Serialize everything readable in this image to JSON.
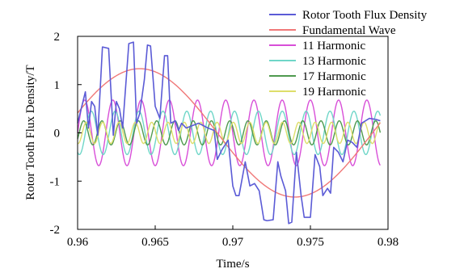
{
  "chart_data": {
    "type": "line",
    "xlabel": "Time/s",
    "ylabel": "Rotor Tooth Flux Density/T",
    "xlim": [
      0.96,
      0.98
    ],
    "ylim": [
      -2,
      2
    ],
    "xticks": [
      "0.96",
      "0.965",
      "0.97",
      "0.975",
      "0.98"
    ],
    "yticks": [
      "2",
      "1",
      "0",
      "-1",
      "-2"
    ],
    "legend_position": "top-right",
    "grid": false,
    "series": [
      {
        "name": "Rotor Tooth Flux Density",
        "color": "#5b5bd6",
        "x": [
          0.96,
          0.9605,
          0.9607,
          0.9609,
          0.9611,
          0.9613,
          0.9616,
          0.962,
          0.9623,
          0.9625,
          0.9627,
          0.9629,
          0.9633,
          0.9636,
          0.9638,
          0.964,
          0.9643,
          0.9645,
          0.9647,
          0.965,
          0.9653,
          0.9656,
          0.9658,
          0.966,
          0.9663,
          0.9665,
          0.9667,
          0.967,
          0.9674,
          0.9678,
          0.9684,
          0.9688,
          0.969,
          0.9693,
          0.9697,
          0.97,
          0.9702,
          0.9704,
          0.9708,
          0.9711,
          0.9714,
          0.9717,
          0.972,
          0.9722,
          0.9726,
          0.9729,
          0.9731,
          0.9734,
          0.9736,
          0.9738,
          0.9741,
          0.9744,
          0.9746,
          0.975,
          0.9753,
          0.9756,
          0.9758,
          0.9761,
          0.9763,
          0.9765,
          0.9768,
          0.9771,
          0.9774,
          0.9777,
          0.978,
          0.9783,
          0.9788,
          0.9792,
          0.9795
        ],
        "y": [
          0.2,
          0.85,
          0.1,
          0.65,
          0.55,
          -0.05,
          1.78,
          1.75,
          -0.05,
          0.65,
          0.5,
          0.1,
          1.85,
          1.88,
          0.2,
          0.4,
          1.1,
          1.82,
          1.8,
          0.55,
          0.3,
          1.6,
          1.6,
          0.2,
          0.25,
          0.05,
          0.2,
          0.1,
          0.15,
          0.2,
          0.1,
          0.05,
          -0.55,
          -0.35,
          -0.15,
          -1.1,
          -1.3,
          -1.3,
          -0.6,
          -1.1,
          -1.05,
          -1.2,
          -1.8,
          -1.82,
          -1.8,
          -0.6,
          -0.9,
          -1.2,
          -1.88,
          -1.85,
          -0.4,
          -1.3,
          -1.75,
          -1.75,
          -0.45,
          -0.7,
          -1.3,
          -1.15,
          -1.25,
          -0.3,
          -0.4,
          -0.6,
          -0.15,
          -0.2,
          -0.3,
          0.2,
          0.3,
          0.28,
          0.25
        ]
      },
      {
        "name": "Fundamental Wave",
        "color": "#f07878",
        "amplitude": 1.33,
        "period": 0.02,
        "phase_x": 0.959,
        "x_range": [
          0.96,
          0.9795
        ]
      },
      {
        "name": "11 Harmonic",
        "color": "#d84fd8",
        "amplitude": 0.68,
        "period": 0.001818,
        "phase_x": 0.96,
        "x_range": [
          0.96,
          0.9795
        ]
      },
      {
        "name": "13 Harmonic",
        "color": "#6fd6c8",
        "amplitude": 0.45,
        "period": 0.001538,
        "phase_x": 0.9605,
        "x_range": [
          0.96,
          0.9795
        ]
      },
      {
        "name": "17 Harmonic",
        "color": "#4f9a4f",
        "amplitude": 0.25,
        "period": 0.001176,
        "phase_x": 0.9601,
        "x_range": [
          0.96,
          0.9795
        ]
      },
      {
        "name": "19 Harmonic",
        "color": "#dede6a",
        "amplitude": 0.22,
        "period": 0.001053,
        "phase_x": 0.9603,
        "x_range": [
          0.96,
          0.9795
        ]
      }
    ]
  }
}
